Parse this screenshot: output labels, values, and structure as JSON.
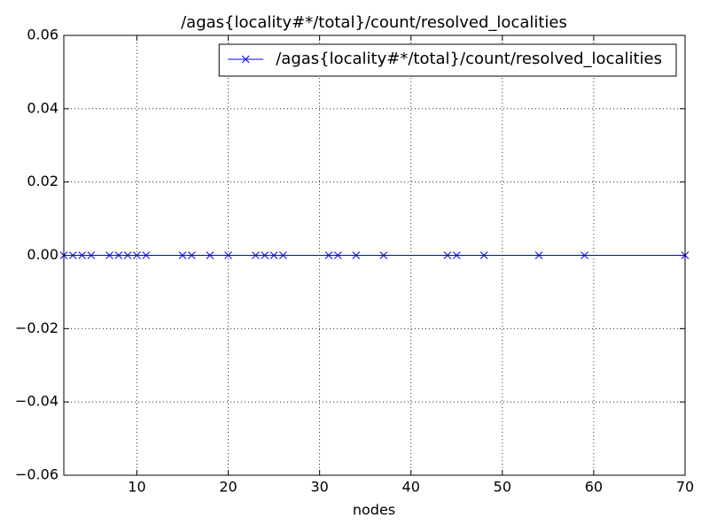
{
  "chart_data": {
    "type": "line",
    "title": "/agas{locality#*/total}/count/resolved_localities",
    "x_label": "nodes",
    "x": [
      2,
      3,
      4,
      5,
      7,
      8,
      9,
      10,
      11,
      15,
      16,
      18,
      20,
      23,
      24,
      25,
      26,
      31,
      32,
      34,
      37,
      44,
      45,
      48,
      54,
      59,
      70
    ],
    "series": [
      {
        "name": "/agas{locality#*/total}/count/resolved_localities",
        "color": "#0000ff",
        "values": [
          0,
          0,
          0,
          0,
          0,
          0,
          0,
          0,
          0,
          0,
          0,
          0,
          0,
          0,
          0,
          0,
          0,
          0,
          0,
          0,
          0,
          0,
          0,
          0,
          0,
          0,
          0
        ]
      }
    ],
    "xlim": [
      2,
      70
    ],
    "xticks": [
      10,
      20,
      30,
      40,
      50,
      60,
      70
    ],
    "ylim": [
      -0.06,
      0.06
    ],
    "yticks": [
      {
        "value": -0.06,
        "label": "−0.06"
      },
      {
        "value": -0.04,
        "label": "−0.04"
      },
      {
        "value": -0.02,
        "label": "−0.02"
      },
      {
        "value": 0,
        "label": "0.00"
      },
      0.02,
      0.04,
      0.06
    ],
    "grid": true,
    "legend": "upper right",
    "marker": "x"
  }
}
